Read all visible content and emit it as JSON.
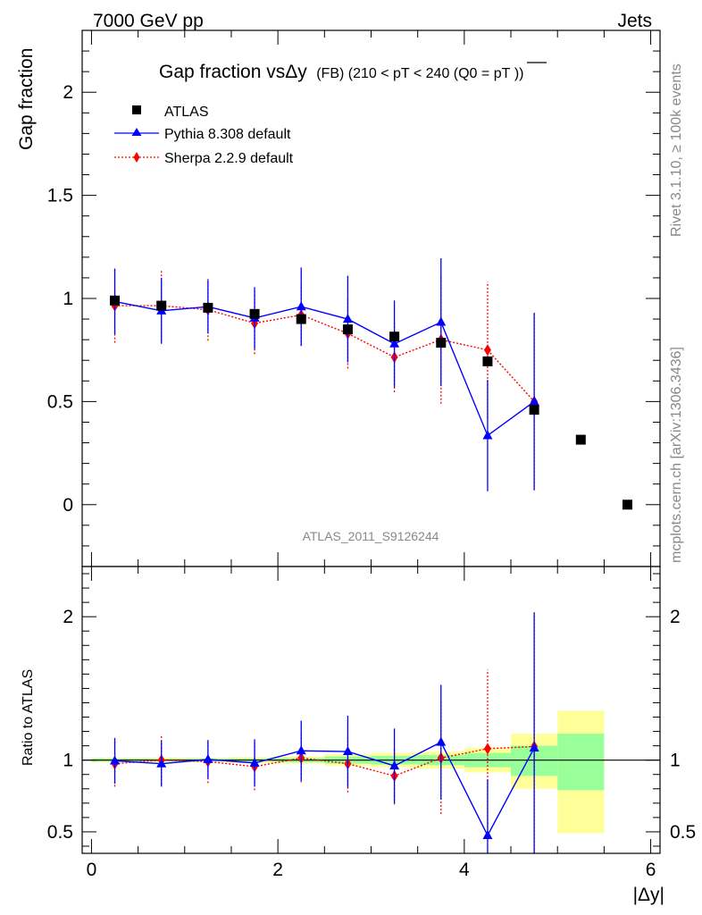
{
  "header": {
    "left": "7000 GeV pp",
    "right": "Jets"
  },
  "title": {
    "main": "Gap fraction vsΔy",
    "sub": "(FB) (210 < pT < 240 (Q0 =",
    "pt": "pT",
    "end": "))"
  },
  "side": {
    "rivet": "Rivet 3.1.10, ≥ 100k events",
    "mcplots": "mcplots.cern.ch [arXiv:1306.3436]"
  },
  "analysis": "ATLAS_2011_S9126244",
  "chart_data": {
    "type": "scatter",
    "x": [
      0.25,
      0.75,
      1.25,
      1.75,
      2.25,
      2.75,
      3.25,
      3.75,
      4.25,
      4.75,
      5.25,
      5.75
    ],
    "xlabel": "|Δy|",
    "xlim": [
      -0.1,
      6.1
    ],
    "xticks": [
      "0",
      "2",
      "4",
      "6"
    ],
    "main": {
      "ylabel": "Gap fraction",
      "ylim": [
        -0.3,
        2.3
      ],
      "yticks": [
        "0",
        "0.5",
        "1",
        "1.5",
        "2"
      ]
    },
    "ratio": {
      "ylabel": "Ratio to ATLAS",
      "ylim": [
        0.35,
        2.35
      ],
      "yticks": [
        "0.5",
        "1",
        "2"
      ]
    },
    "series": [
      {
        "name": "ATLAS",
        "color": "#000000",
        "values": [
          0.99,
          0.965,
          0.955,
          0.925,
          0.9,
          0.85,
          0.815,
          0.785,
          0.695,
          0.46,
          0.315,
          0.0
        ]
      },
      {
        "name": "Pythia 8.308 default",
        "color": "#0000ff",
        "values": [
          0.985,
          0.94,
          0.96,
          0.905,
          0.96,
          0.9,
          0.78,
          0.885,
          0.335,
          0.5
        ],
        "errors": [
          0.16,
          0.16,
          0.13,
          0.15,
          0.19,
          0.21,
          0.21,
          0.31,
          0.27,
          0.43
        ],
        "ratio": [
          0.995,
          0.975,
          1.005,
          0.98,
          1.065,
          1.06,
          0.96,
          1.125,
          0.475,
          1.085
        ],
        "ratio_errors": [
          0.16,
          0.16,
          0.135,
          0.165,
          0.21,
          0.25,
          0.26,
          0.4,
          0.39,
          0.94
        ]
      },
      {
        "name": "Sherpa 2.2.9 default",
        "color": "#ff0000",
        "values": [
          0.965,
          0.965,
          0.945,
          0.88,
          0.92,
          0.83,
          0.715,
          0.8,
          0.75,
          0.5
        ],
        "errors": [
          0.18,
          0.17,
          0.15,
          0.15,
          0.15,
          0.17,
          0.17,
          0.31,
          0.33,
          0.43
        ],
        "ratio": [
          0.975,
          1.0,
          0.99,
          0.955,
          1.015,
          0.975,
          0.89,
          1.015,
          1.08,
          1.095
        ],
        "ratio_errors": [
          0.16,
          0.17,
          0.15,
          0.165,
          0.17,
          0.2,
          0.2,
          0.39,
          0.55,
          0.95
        ]
      }
    ],
    "bands": {
      "edges": [
        0,
        0.5,
        1,
        1.5,
        2,
        2.5,
        3,
        3.5,
        4,
        4.5,
        5,
        5.5
      ],
      "inner": [
        [
          0.99,
          1.01
        ],
        [
          0.99,
          1.01
        ],
        [
          0.99,
          1.01
        ],
        [
          0.99,
          1.01
        ],
        [
          0.985,
          1.015
        ],
        [
          0.975,
          1.025
        ],
        [
          0.97,
          1.03
        ],
        [
          0.965,
          1.035
        ],
        [
          0.95,
          1.05
        ],
        [
          0.89,
          1.1
        ],
        [
          0.79,
          1.185
        ],
        [
          0.79,
          1.185
        ]
      ],
      "outer": [
        [
          0.985,
          1.015
        ],
        [
          0.985,
          1.015
        ],
        [
          0.985,
          1.015
        ],
        [
          0.98,
          1.02
        ],
        [
          0.975,
          1.025
        ],
        [
          0.96,
          1.04
        ],
        [
          0.95,
          1.05
        ],
        [
          0.94,
          1.06
        ],
        [
          0.915,
          1.085
        ],
        [
          0.8,
          1.185
        ],
        [
          0.49,
          1.345
        ],
        [
          0.49,
          1.345
        ]
      ]
    }
  }
}
